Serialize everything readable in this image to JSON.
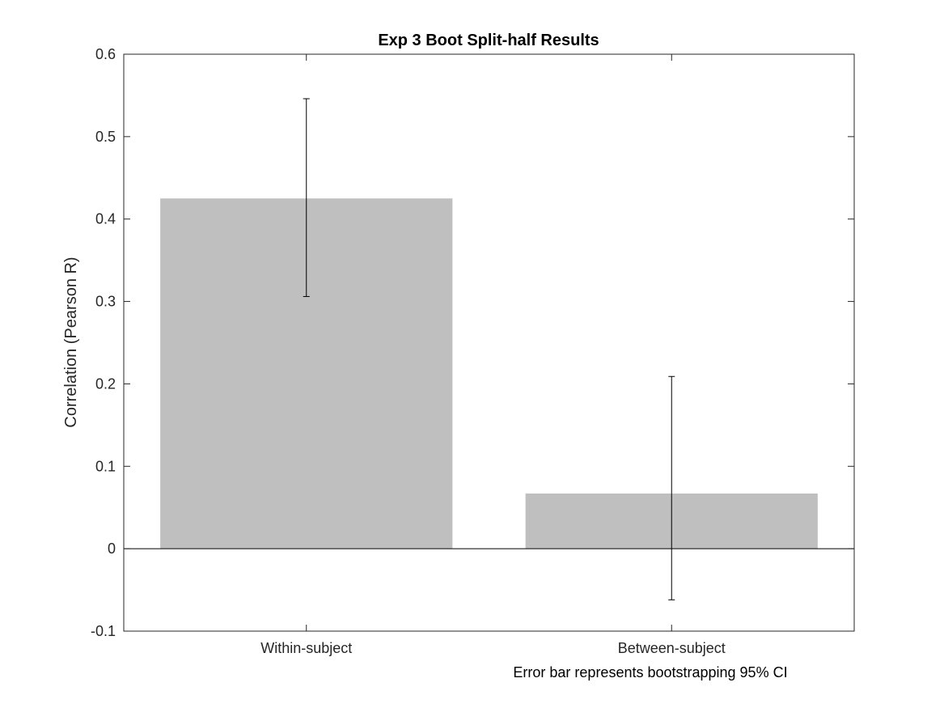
{
  "chart_data": {
    "type": "bar",
    "title": "Exp 3 Boot Split-half Results",
    "xlabel": "",
    "ylabel": "Correlation (Pearson R)",
    "note": "Error bar represents bootstrapping 95% CI",
    "categories": [
      "Within-subject",
      "Between-subject"
    ],
    "values": [
      0.425,
      0.067
    ],
    "error_low": [
      0.306,
      -0.062
    ],
    "error_high": [
      0.546,
      0.209
    ],
    "ylim": [
      -0.1,
      0.6
    ],
    "yticks": [
      -0.1,
      0,
      0.1,
      0.2,
      0.3,
      0.4,
      0.5,
      0.6
    ],
    "ytick_labels": [
      "-0.1",
      "0",
      "0.1",
      "0.2",
      "0.3",
      "0.4",
      "0.5",
      "0.6"
    ],
    "bar_color": "#bfbfbf",
    "grid": false
  }
}
